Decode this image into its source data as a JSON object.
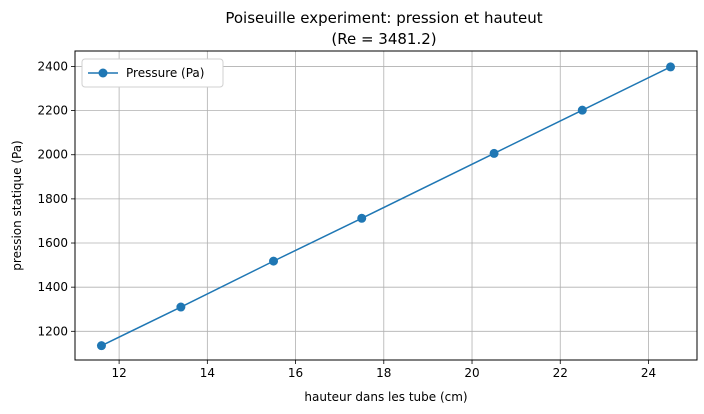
{
  "chart_data": {
    "type": "line",
    "title": "Poiseuille experiment: pression et hauteut",
    "subtitle": "(Re = 3481.2)",
    "xlabel": "hauteur dans les tube (cm)",
    "ylabel": "pression statique (Pa)",
    "xlim": [
      11.0,
      25.1
    ],
    "ylim": [
      1070,
      2470
    ],
    "xticks": [
      12,
      14,
      16,
      18,
      20,
      22,
      24
    ],
    "yticks": [
      1200,
      1400,
      1600,
      1800,
      2000,
      2200,
      2400
    ],
    "grid": true,
    "legend_position": "top-left",
    "series": [
      {
        "name": "Pressure (Pa)",
        "color": "#1f77b4",
        "marker": "circle",
        "x": [
          11.6,
          13.4,
          15.5,
          17.5,
          20.5,
          22.5,
          24.5
        ],
        "y": [
          1135,
          1310,
          1518,
          1712,
          2006,
          2202,
          2398
        ]
      }
    ]
  }
}
